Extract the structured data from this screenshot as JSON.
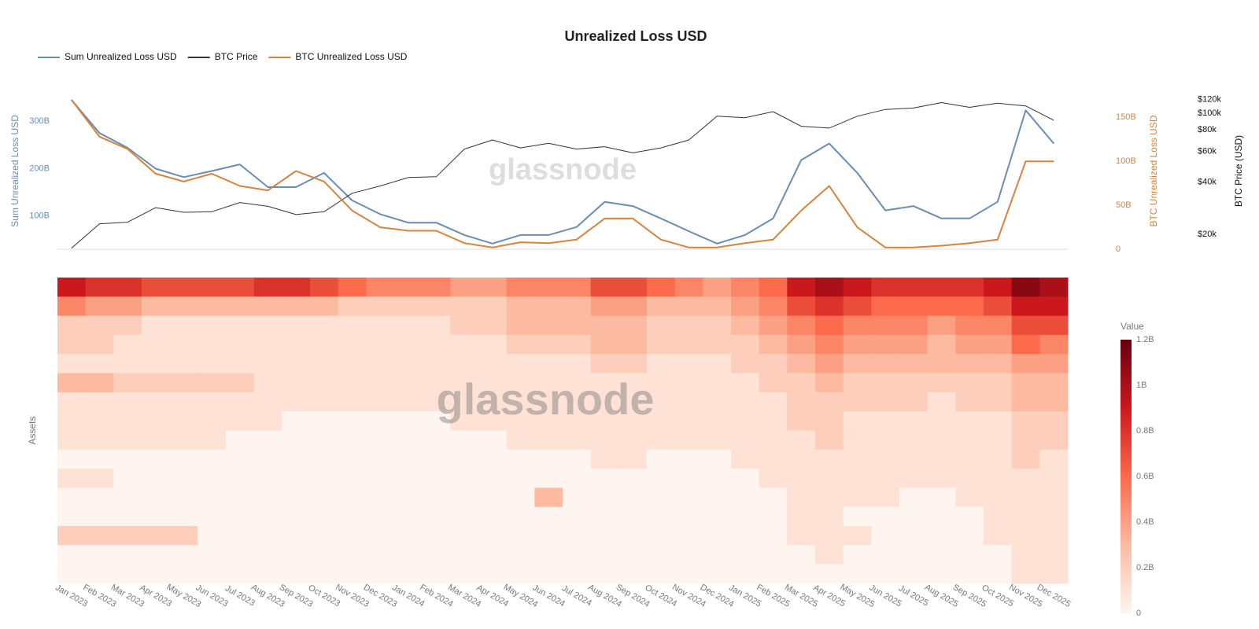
{
  "chart_data": [
    {
      "type": "line",
      "title": "Unrealized Loss USD",
      "watermark": "glassnode",
      "categories": [
        "Jan 2023",
        "Feb 2023",
        "Mar 2023",
        "Apr 2023",
        "May 2023",
        "Jun 2023",
        "Jul 2023",
        "Aug 2023",
        "Sep 2023",
        "Oct 2023",
        "Nov 2023",
        "Dec 2023",
        "Jan 2024",
        "Feb 2024",
        "Mar 2024",
        "Apr 2024",
        "May 2024",
        "Jun 2024",
        "Jul 2024",
        "Aug 2024",
        "Sep 2024",
        "Oct 2024",
        "Nov 2024",
        "Dec 2024",
        "Jan 2025",
        "Feb 2025",
        "Mar 2025",
        "Apr 2025",
        "May 2025",
        "Jun 2025",
        "Jul 2025",
        "Aug 2025",
        "Sep 2025",
        "Oct 2025",
        "Nov 2025",
        "Dec 2025"
      ],
      "ylabel": "Sum Unrealized Loss USD",
      "ylim": [
        30,
        360
      ],
      "yticks": [
        {
          "value": 100,
          "label": "100B"
        },
        {
          "value": 200,
          "label": "200B"
        },
        {
          "value": 300,
          "label": "300B"
        }
      ],
      "y2label": "BTC Unrealized Loss USD",
      "y2lim": [
        0,
        178
      ],
      "y2ticks": [
        0,
        {
          "value": 50,
          "label": "50B"
        },
        {
          "value": 100,
          "label": "100B"
        },
        {
          "value": 150,
          "label": "150B"
        }
      ],
      "y3label": "BTC Price (USD)",
      "y3lim": [
        16400,
        131000
      ],
      "y3log": true,
      "y3ticks": [
        {
          "value": 20000,
          "label": "$20k"
        },
        {
          "value": 40000,
          "label": "$40k"
        },
        {
          "value": 60000,
          "label": "$60k"
        },
        {
          "value": 80000,
          "label": "$80k"
        },
        {
          "value": 100000,
          "label": "$100k"
        },
        {
          "value": 120000,
          "label": "$120k"
        }
      ],
      "series": [
        {
          "name": "Sum Unrealized Loss USD",
          "color": "#6a8db3",
          "axis": "y",
          "width": 2,
          "values": [
            345,
            275,
            244,
            200,
            182,
            195,
            209,
            161,
            161,
            191,
            133,
            104,
            86,
            86,
            60,
            42,
            60,
            60,
            77,
            130,
            121,
            95,
            68,
            42,
            60,
            95,
            218,
            253,
            191,
            112,
            121,
            95,
            95,
            130,
            323,
            253
          ]
        },
        {
          "name": "BTC Price",
          "color": "#333333",
          "axis": "y3",
          "width": 1,
          "values": [
            16600,
            23000,
            23500,
            28500,
            26800,
            27000,
            30500,
            29000,
            26000,
            27000,
            34500,
            38000,
            42500,
            43000,
            62000,
            70000,
            63000,
            67000,
            62000,
            64000,
            59000,
            63000,
            70000,
            96000,
            94000,
            102000,
            84000,
            82000,
            96000,
            105000,
            107000,
            115000,
            108000,
            114000,
            110000,
            91000
          ]
        },
        {
          "name": "BTC Unrealized Loss USD",
          "color": "#d6833c",
          "axis": "y2",
          "width": 2,
          "values": [
            170,
            128,
            114,
            86,
            77,
            86,
            72,
            67,
            89,
            77,
            44,
            25,
            21,
            21,
            7,
            2,
            8,
            7,
            11,
            35,
            35,
            11,
            2,
            2,
            7,
            11,
            44,
            72,
            25,
            2,
            2,
            4,
            7,
            11,
            100,
            100
          ]
        }
      ]
    },
    {
      "type": "heatmap",
      "watermark": "glassnode",
      "ylabel": "Assets",
      "colorbar_title": "Value",
      "zlim": [
        0,
        1.2
      ],
      "zticks": [
        0,
        {
          "value": 0.2,
          "label": "0.2B"
        },
        {
          "value": 0.4,
          "label": "0.4B"
        },
        {
          "value": 0.6,
          "label": "0.6B"
        },
        {
          "value": 0.8,
          "label": "0.8B"
        },
        {
          "value": 1,
          "label": "1B"
        },
        {
          "value": 1.2,
          "label": "1.2B"
        }
      ],
      "values": [
        [
          0.9,
          0.8,
          0.8,
          0.7,
          0.7,
          0.7,
          0.7,
          0.8,
          0.8,
          0.7,
          0.6,
          0.5,
          0.5,
          0.5,
          0.4,
          0.4,
          0.5,
          0.5,
          0.5,
          0.7,
          0.7,
          0.6,
          0.5,
          0.4,
          0.5,
          0.6,
          0.9,
          1.0,
          0.9,
          0.8,
          0.8,
          0.8,
          0.8,
          0.9,
          1.1,
          1.0
        ],
        [
          0.5,
          0.4,
          0.4,
          0.3,
          0.3,
          0.3,
          0.3,
          0.3,
          0.3,
          0.3,
          0.2,
          0.2,
          0.2,
          0.2,
          0.2,
          0.2,
          0.3,
          0.3,
          0.3,
          0.4,
          0.4,
          0.3,
          0.3,
          0.3,
          0.4,
          0.5,
          0.7,
          0.8,
          0.7,
          0.6,
          0.6,
          0.6,
          0.6,
          0.7,
          0.9,
          0.9
        ],
        [
          0.2,
          0.2,
          0.2,
          0.1,
          0.1,
          0.1,
          0.1,
          0.1,
          0.1,
          0.1,
          0.1,
          0.1,
          0.1,
          0.1,
          0.2,
          0.2,
          0.3,
          0.3,
          0.3,
          0.3,
          0.3,
          0.2,
          0.2,
          0.2,
          0.3,
          0.4,
          0.5,
          0.6,
          0.5,
          0.5,
          0.5,
          0.4,
          0.5,
          0.5,
          0.7,
          0.7
        ],
        [
          0.2,
          0.2,
          0.1,
          0.1,
          0.1,
          0.1,
          0.1,
          0.1,
          0.1,
          0.1,
          0.1,
          0.1,
          0.1,
          0.1,
          0.1,
          0.1,
          0.2,
          0.2,
          0.2,
          0.3,
          0.3,
          0.2,
          0.2,
          0.2,
          0.2,
          0.3,
          0.4,
          0.5,
          0.4,
          0.4,
          0.4,
          0.3,
          0.4,
          0.4,
          0.6,
          0.5
        ],
        [
          0.1,
          0.1,
          0.1,
          0.1,
          0.1,
          0.1,
          0.1,
          0.1,
          0.1,
          0.1,
          0.1,
          0.1,
          0.1,
          0.1,
          0.1,
          0.1,
          0.1,
          0.1,
          0.1,
          0.2,
          0.2,
          0.1,
          0.1,
          0.1,
          0.2,
          0.2,
          0.3,
          0.4,
          0.3,
          0.3,
          0.3,
          0.3,
          0.3,
          0.3,
          0.4,
          0.4
        ],
        [
          0.3,
          0.3,
          0.2,
          0.2,
          0.2,
          0.2,
          0.2,
          0.1,
          0.1,
          0.1,
          0.1,
          0.1,
          0.1,
          0.1,
          0.1,
          0.1,
          0.1,
          0.1,
          0.1,
          0.1,
          0.1,
          0.1,
          0.1,
          0.1,
          0.1,
          0.2,
          0.2,
          0.3,
          0.2,
          0.2,
          0.2,
          0.2,
          0.2,
          0.2,
          0.3,
          0.3
        ],
        [
          0.1,
          0.1,
          0.1,
          0.1,
          0.1,
          0.1,
          0.1,
          0.1,
          0.1,
          0.1,
          0.1,
          0.1,
          0.1,
          0.1,
          0.1,
          0.1,
          0.1,
          0.1,
          0.1,
          0.1,
          0.1,
          0.1,
          0.1,
          0.1,
          0.1,
          0.1,
          0.2,
          0.2,
          0.2,
          0.2,
          0.2,
          0.1,
          0.2,
          0.2,
          0.3,
          0.3
        ],
        [
          0.1,
          0.1,
          0.1,
          0.1,
          0.1,
          0.1,
          0.1,
          0.1,
          0,
          0,
          0,
          0,
          0,
          0,
          0.1,
          0.1,
          0.1,
          0.1,
          0.1,
          0.1,
          0.1,
          0.1,
          0.1,
          0.1,
          0.1,
          0.1,
          0.2,
          0.2,
          0.1,
          0.1,
          0.1,
          0.1,
          0.1,
          0.1,
          0.2,
          0.2
        ],
        [
          0.1,
          0.1,
          0.1,
          0.1,
          0.1,
          0.1,
          0,
          0,
          0,
          0,
          0,
          0,
          0,
          0,
          0,
          0,
          0.1,
          0.1,
          0.1,
          0.1,
          0.1,
          0.1,
          0.1,
          0.1,
          0.1,
          0.1,
          0.1,
          0.2,
          0.1,
          0.1,
          0.1,
          0.1,
          0.1,
          0.1,
          0.2,
          0.2
        ],
        [
          0,
          0,
          0,
          0,
          0,
          0,
          0,
          0,
          0,
          0,
          0,
          0,
          0,
          0,
          0,
          0,
          0,
          0,
          0,
          0.1,
          0.1,
          0,
          0,
          0,
          0.1,
          0.1,
          0.1,
          0.1,
          0.1,
          0.1,
          0.1,
          0.1,
          0.1,
          0.1,
          0.2,
          0.1
        ],
        [
          0.1,
          0.1,
          0,
          0,
          0,
          0,
          0,
          0,
          0,
          0,
          0,
          0,
          0,
          0,
          0,
          0,
          0,
          0,
          0,
          0,
          0,
          0,
          0,
          0,
          0,
          0.1,
          0.1,
          0.1,
          0.1,
          0.1,
          0.1,
          0.1,
          0.1,
          0.1,
          0.1,
          0.1
        ],
        [
          0,
          0,
          0,
          0,
          0,
          0,
          0,
          0,
          0,
          0,
          0,
          0,
          0,
          0,
          0,
          0,
          0,
          0.3,
          0,
          0,
          0,
          0,
          0,
          0,
          0,
          0,
          0.1,
          0.1,
          0.1,
          0.1,
          0,
          0,
          0.1,
          0.1,
          0.1,
          0.1
        ],
        [
          0,
          0,
          0,
          0,
          0,
          0,
          0,
          0,
          0,
          0,
          0,
          0,
          0,
          0,
          0,
          0,
          0,
          0,
          0,
          0,
          0,
          0,
          0,
          0,
          0,
          0,
          0.1,
          0.1,
          0,
          0,
          0,
          0,
          0,
          0.1,
          0.1,
          0.1
        ],
        [
          0.2,
          0.2,
          0.2,
          0.2,
          0.2,
          0,
          0,
          0,
          0,
          0,
          0,
          0,
          0,
          0,
          0,
          0,
          0,
          0,
          0,
          0,
          0,
          0,
          0,
          0,
          0,
          0,
          0.1,
          0.1,
          0.1,
          0,
          0,
          0,
          0,
          0.1,
          0.1,
          0.1
        ],
        [
          0,
          0,
          0,
          0,
          0,
          0,
          0,
          0,
          0,
          0,
          0,
          0,
          0,
          0,
          0,
          0,
          0,
          0,
          0,
          0,
          0,
          0,
          0,
          0,
          0,
          0,
          0,
          0.1,
          0,
          0,
          0,
          0,
          0,
          0,
          0.1,
          0.1
        ],
        [
          0,
          0,
          0,
          0,
          0,
          0,
          0,
          0,
          0,
          0,
          0,
          0,
          0,
          0,
          0,
          0,
          0,
          0,
          0,
          0,
          0,
          0,
          0,
          0,
          0,
          0,
          0,
          0,
          0,
          0,
          0,
          0,
          0,
          0,
          0.1,
          0.1
        ]
      ]
    }
  ]
}
